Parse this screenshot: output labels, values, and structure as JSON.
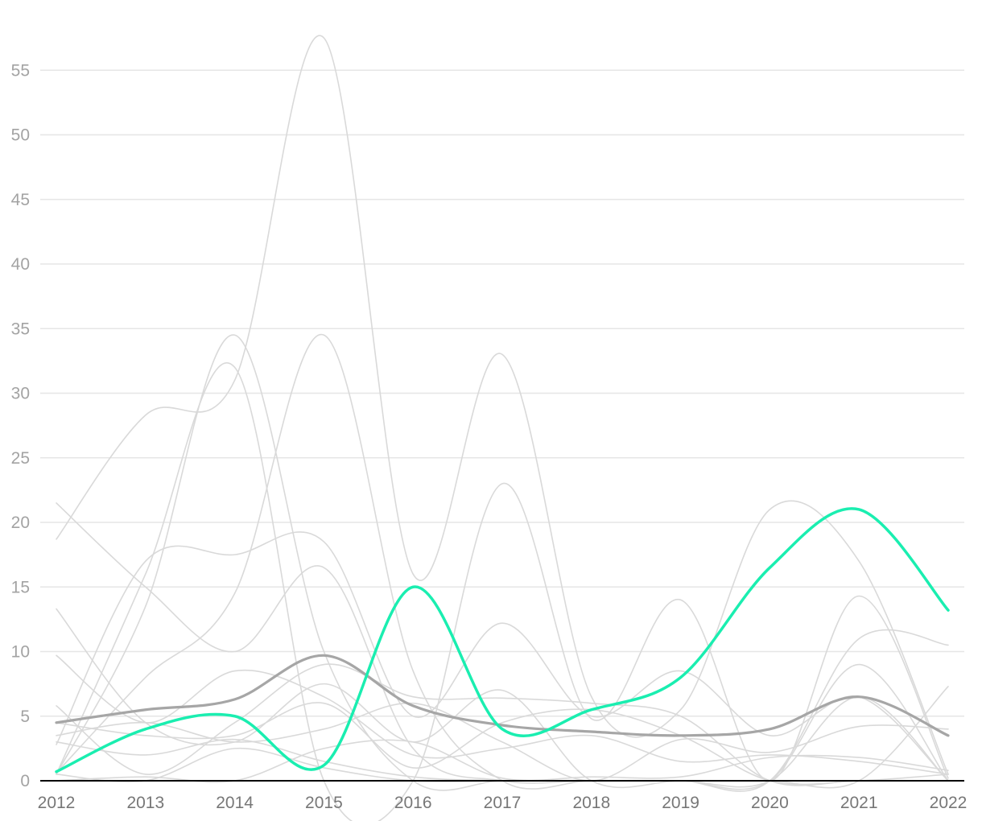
{
  "chart_data": {
    "type": "line",
    "title": "",
    "xlabel": "",
    "ylabel": "",
    "x": [
      2012,
      2013,
      2014,
      2015,
      2016,
      2017,
      2018,
      2019,
      2020,
      2021,
      2022
    ],
    "x_tick_labels": [
      "2012",
      "2013",
      "2014",
      "2015",
      "2016",
      "2017",
      "2018",
      "2019",
      "2020",
      "2021",
      "2022"
    ],
    "y_tick_labels": [
      "0",
      "5",
      "10",
      "15",
      "20",
      "25",
      "30",
      "35",
      "40",
      "45",
      "50",
      "55"
    ],
    "ylim": [
      0,
      58
    ],
    "grid": true,
    "legend": "none",
    "colors": {
      "highlight": "#1aeeb0",
      "average": "#a6a6a6",
      "background_series": "#d9d9d9",
      "grid": "#e6e6e6",
      "axis": "#000000"
    },
    "series": [
      {
        "role": "highlight",
        "values": [
          0.7,
          4.0,
          5.0,
          1.2,
          15.0,
          4.0,
          5.5,
          8.0,
          16.5,
          21.0,
          13.2
        ]
      },
      {
        "role": "average",
        "values": [
          4.5,
          5.5,
          6.3,
          9.7,
          5.8,
          4.3,
          3.8,
          3.5,
          4.0,
          6.5,
          3.5
        ]
      },
      {
        "role": "background",
        "values": [
          18.7,
          28.3,
          31.0,
          57.5,
          16.0,
          33.0,
          6.5,
          5.5,
          21.0,
          17.0,
          0.5
        ]
      },
      {
        "role": "background",
        "values": [
          0.5,
          16.0,
          32.0,
          0.0,
          0.0,
          23.0,
          4.8,
          14.0,
          0.0,
          14.3,
          0.2
        ]
      },
      {
        "role": "background",
        "values": [
          0.5,
          13.5,
          34.5,
          10.0,
          0.0,
          0.0,
          0.0,
          0.0,
          0.0,
          9.0,
          0.0
        ]
      },
      {
        "role": "background",
        "values": [
          0.6,
          8.0,
          14.5,
          34.5,
          8.5,
          0.0,
          0.0,
          0.0,
          0.0,
          0.0,
          7.3
        ]
      },
      {
        "role": "background",
        "values": [
          21.5,
          15.0,
          10.0,
          16.5,
          2.5,
          0.0,
          0.0,
          0.0,
          0.0,
          11.0,
          10.5
        ]
      },
      {
        "role": "background",
        "values": [
          2.8,
          17.0,
          17.5,
          18.5,
          5.0,
          12.2,
          5.0,
          8.5,
          3.5,
          6.5,
          0.0
        ]
      },
      {
        "role": "background",
        "values": [
          13.3,
          4.5,
          3.0,
          7.5,
          3.0,
          7.0,
          0.0,
          0.0,
          0.0,
          6.5,
          0.0
        ]
      },
      {
        "role": "background",
        "values": [
          9.7,
          4.5,
          8.5,
          6.5,
          2.0,
          2.5,
          3.5,
          1.5,
          2.0,
          1.5,
          0.5
        ]
      },
      {
        "role": "background",
        "values": [
          5.8,
          0.5,
          4.5,
          9.0,
          6.5,
          6.4,
          6.0,
          5.0,
          0.0,
          0.0,
          0.0
        ]
      },
      {
        "role": "background",
        "values": [
          3.5,
          4.5,
          3.0,
          4.0,
          6.0,
          3.0,
          0.0,
          3.2,
          2.2,
          4.2,
          4.0
        ]
      },
      {
        "role": "background",
        "values": [
          4.5,
          3.5,
          3.5,
          6.0,
          1.0,
          4.5,
          5.5,
          3.5,
          0.0,
          0.0,
          0.5
        ]
      },
      {
        "role": "background",
        "values": [
          3.0,
          2.0,
          3.2,
          1.5,
          0.3,
          0.0,
          0.0,
          0.0,
          0.0,
          0.0,
          0.0
        ]
      },
      {
        "role": "background",
        "values": [
          0.0,
          0.3,
          0.0,
          2.5,
          3.0,
          0.2,
          0.3,
          0.3,
          1.8,
          1.8,
          0.8
        ]
      },
      {
        "role": "background",
        "values": [
          0.5,
          0.0,
          2.5,
          1.0,
          0.0,
          0.0,
          0.0,
          0.0,
          0.0,
          0.0,
          0.0
        ]
      }
    ]
  }
}
